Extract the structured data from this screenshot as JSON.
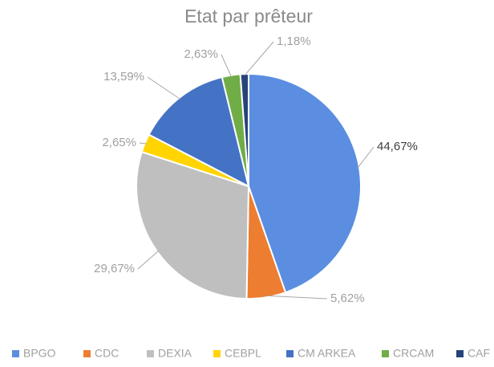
{
  "chart_data": {
    "type": "pie",
    "title": "Etat par prêteur",
    "categories": [
      "BPGO",
      "CDC",
      "DEXIA",
      "CEBPL",
      "CM ARKEA",
      "CRCAM",
      "CAF"
    ],
    "values": [
      44.67,
      5.62,
      29.67,
      2.65,
      13.59,
      2.63,
      1.18
    ],
    "value_labels": [
      "44,67%",
      "5,62%",
      "29,67%",
      "2,65%",
      "13,59%",
      "2,63%",
      "1,18%"
    ],
    "colors": [
      "#5b8ee0",
      "#ed7d31",
      "#bfbfbf",
      "#ffd400",
      "#4472c4",
      "#70ad47",
      "#264478"
    ],
    "legend": "bottom"
  }
}
